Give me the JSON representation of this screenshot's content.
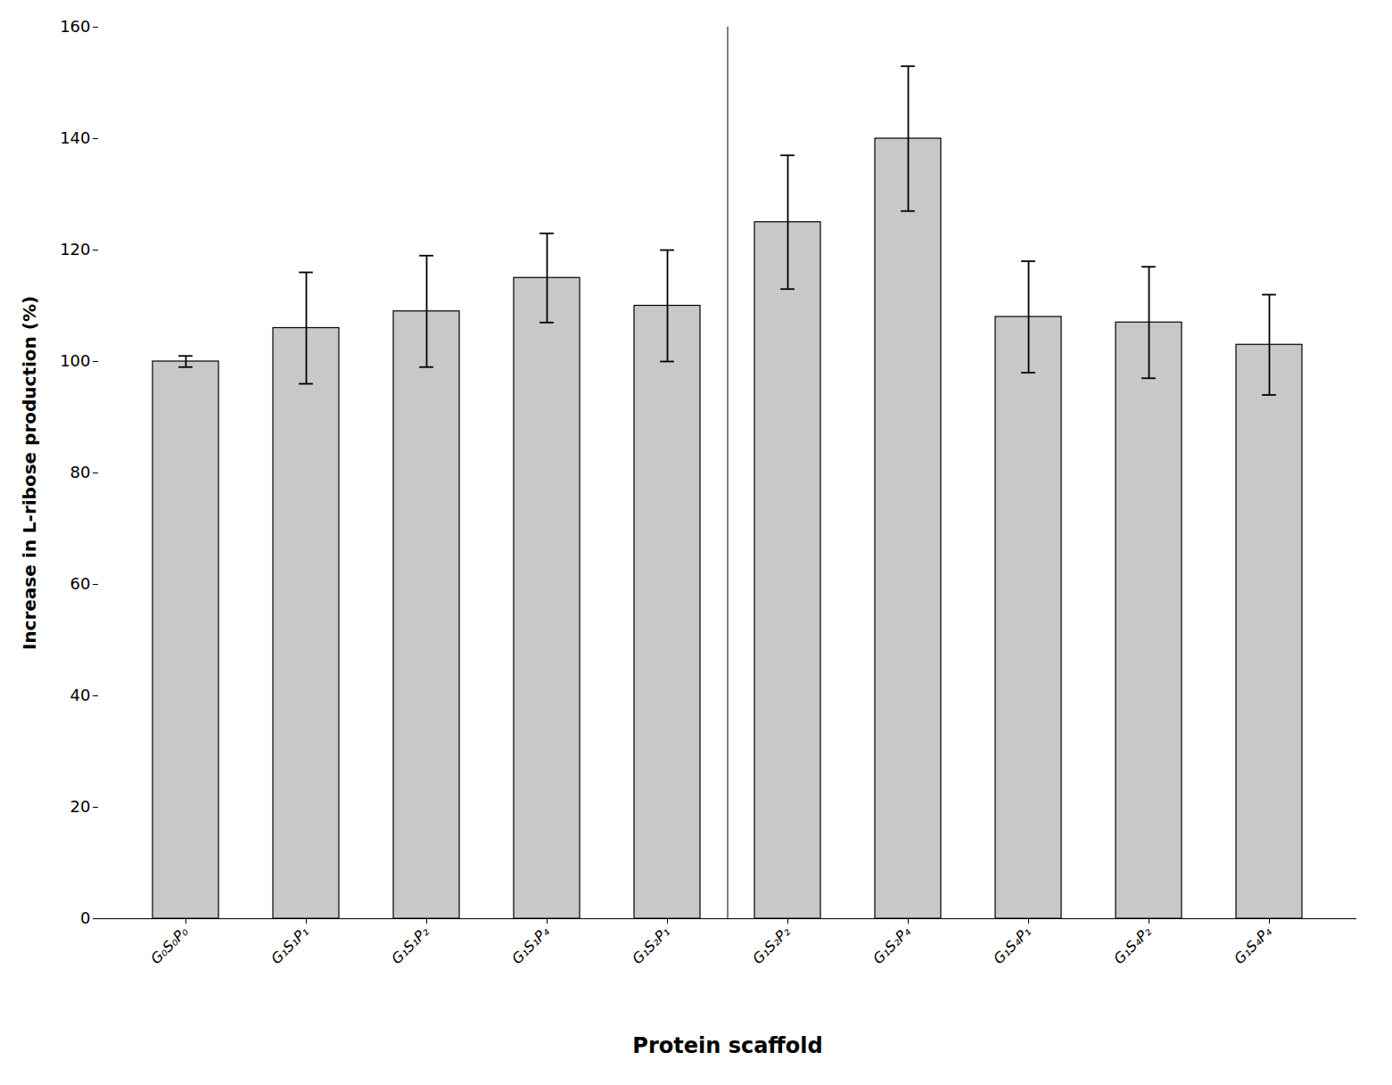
{
  "chart_data": {
    "type": "bar",
    "categories": [
      "G₀S₀P₀",
      "G₁S₁P₁",
      "G₁S₁P₂",
      "G₁S₁P₄",
      "G₁S₂P₁",
      "G₁S₂P₂",
      "G₁S₂P₄",
      "G₁S₄P₁",
      "G₁S₄P₂",
      "G₁S₄P₄"
    ],
    "values": [
      100,
      106,
      109,
      115,
      110,
      125,
      140,
      108,
      107,
      103
    ],
    "errors": [
      1,
      10,
      10,
      8,
      10,
      12,
      13,
      10,
      10,
      9
    ],
    "color": "#c8c8c8",
    "xlabel": "Protein scaffold",
    "ylabel": "Increase in L-ribose production (%)",
    "ylim": [
      0,
      160
    ],
    "yticks": [
      0,
      20,
      40,
      60,
      80,
      100,
      120,
      140,
      160
    ],
    "grid": false
  }
}
